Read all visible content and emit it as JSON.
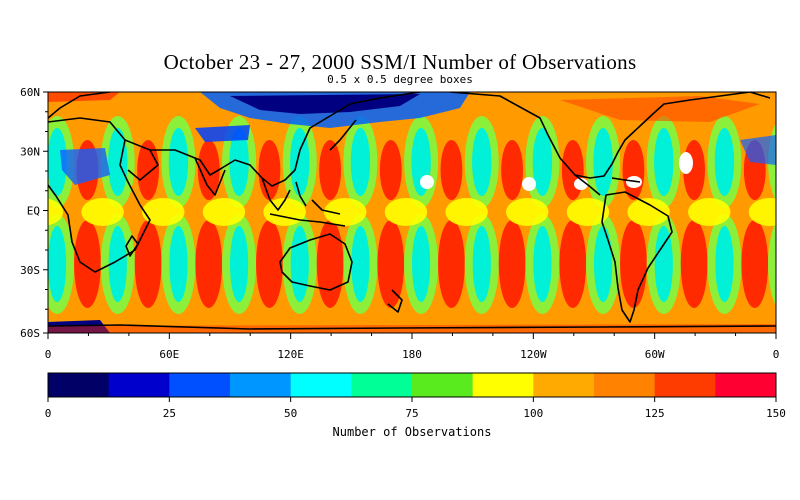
{
  "title": "October 23 - 27, 2000 SSM/I Number of Observations",
  "subtitle": "0.5 x 0.5 degree boxes",
  "map": {
    "lat_labels": [
      "60N",
      "30N",
      "EQ",
      "30S",
      "60S"
    ],
    "lon_labels": [
      "0",
      "60E",
      "120E",
      "180",
      "120W",
      "60W",
      "0"
    ],
    "background_stripes": {
      "count": 12,
      "colors": {
        "red": "#ff2a00",
        "orange": "#ff9a00",
        "yellow": "#ffff00",
        "green": "#8cf03a",
        "cyan": "#00f0d8",
        "blue_patch": "#0040ff",
        "navy_patch": "#000080",
        "no_data": "#ffffff",
        "land_outline": "#000000"
      }
    }
  },
  "colorbar": {
    "title": "Number of Observations",
    "tick_labels": [
      "0",
      "25",
      "50",
      "75",
      "100",
      "125",
      "150"
    ],
    "range": [
      0,
      150
    ],
    "colors": [
      "#000066",
      "#0000cc",
      "#0050ff",
      "#0096ff",
      "#00ffff",
      "#00ff96",
      "#5aeb1e",
      "#ffff00",
      "#ffaa00",
      "#ff8200",
      "#ff3c00",
      "#ff0032"
    ]
  }
}
